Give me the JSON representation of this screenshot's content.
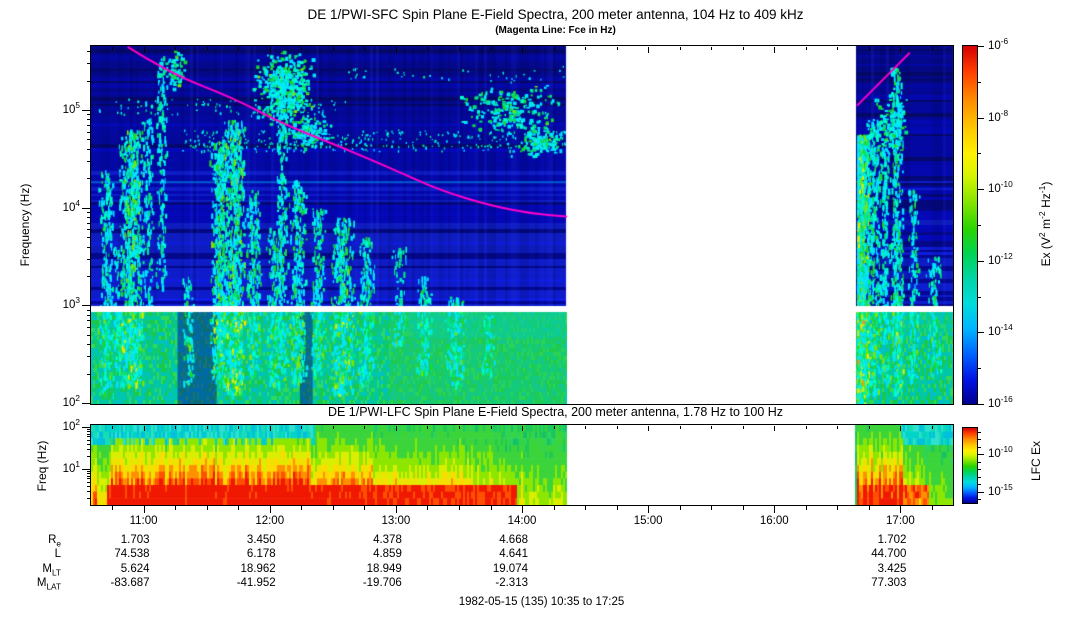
{
  "footer": {
    "caption": "1982-05-15 (135) 10:35 to 17:25"
  },
  "ephemeris": {
    "row_labels_rich": [
      [
        {
          "t": "R"
        },
        {
          "t": "e",
          "sub": true
        }
      ],
      [
        {
          "t": "L"
        }
      ],
      [
        {
          "t": "M"
        },
        {
          "t": "LT",
          "sub": true
        }
      ],
      [
        {
          "t": "M"
        },
        {
          "t": "LAT",
          "sub": true
        }
      ]
    ],
    "columns": [
      {
        "time": "11:00",
        "values": [
          "1.703",
          "74.538",
          "5.624",
          "-83.687"
        ]
      },
      {
        "time": "12:00",
        "values": [
          "3.450",
          "6.178",
          "18.962",
          "-41.952"
        ]
      },
      {
        "time": "13:00",
        "values": [
          "4.378",
          "4.859",
          "18.949",
          "-19.706"
        ]
      },
      {
        "time": "14:00",
        "values": [
          "4.668",
          "4.641",
          "19.074",
          "-2.313"
        ]
      },
      {
        "time": "15:00",
        "values": [
          "",
          "",
          "",
          ""
        ]
      },
      {
        "time": "16:00",
        "values": [
          "",
          "",
          "",
          ""
        ]
      },
      {
        "time": "17:00",
        "values": [
          "1.702",
          "44.700",
          "3.425",
          "77.303"
        ]
      }
    ]
  },
  "chart_data": [
    {
      "type": "heatmap",
      "id": "sfc",
      "title": "DE 1/PWI-SFC  Spin Plane E-Field Spectra, 200 meter antenna, 104 Hz to 409 kHz",
      "subtitle": "(Magenta Line: Fce in Hz)",
      "ylabel": "Frequency (Hz)",
      "y_scale": "log",
      "y_range_hz": [
        100,
        450000
      ],
      "y_tick_exps": [
        5,
        4,
        3,
        2
      ],
      "x_range_hours": [
        10.5833,
        17.4167
      ],
      "x_minor_step_hours": 0.25,
      "x_ticks": [
        {
          "hour": 11,
          "label": "11:00"
        },
        {
          "hour": 12,
          "label": "12:00"
        },
        {
          "hour": 13,
          "label": "13:00"
        },
        {
          "hour": 14,
          "label": "14:00"
        },
        {
          "hour": 15,
          "label": "15:00"
        },
        {
          "hour": 16,
          "label": "16:00"
        },
        {
          "hour": 17,
          "label": "17:00"
        }
      ],
      "data_gap_hours": [
        14.35,
        16.65
      ],
      "band_split_white_strip_hz": [
        950,
        1050
      ],
      "colorbar": {
        "label_rich": [
          {
            "t": "Ex (V"
          },
          {
            "t": "2",
            "sup": true
          },
          {
            "t": " m"
          },
          {
            "t": "-2",
            "sup": true
          },
          {
            "t": " Hz"
          },
          {
            "t": "-1",
            "sup": true
          },
          {
            "t": ")"
          }
        ],
        "tick_exps": [
          -6,
          -8,
          -10,
          -12,
          -14,
          -16
        ],
        "range_exps": [
          -6,
          -16
        ]
      },
      "fce_line": {
        "color": "#ff00cc",
        "description": "electron cyclotron frequency Fce in Hz",
        "segments_t_hz": [
          [
            [
              10.88,
              437000
            ],
            [
              11.2,
              240000
            ],
            [
              11.73,
              129000
            ],
            [
              12.1,
              72000
            ],
            [
              12.56,
              42000
            ],
            [
              13.0,
              24000
            ],
            [
              13.35,
              15000
            ],
            [
              13.75,
              10500
            ],
            [
              14.07,
              8700
            ],
            [
              14.35,
              8100
            ]
          ],
          [
            [
              16.66,
              112000
            ],
            [
              16.82,
              180000
            ],
            [
              17.07,
              380000
            ]
          ]
        ]
      },
      "features": {
        "streaks": [
          {
            "t": 10.7,
            "w": 8,
            "e0": 2.1,
            "e1": 4.4,
            "d": 0.5,
            "hot": 0.15
          },
          {
            "t": 10.79,
            "w": 5,
            "e0": 2.2,
            "e1": 3.6,
            "d": 0.4,
            "hot": 0.1
          },
          {
            "t": 10.9,
            "w": 13,
            "e0": 2.2,
            "e1": 4.8,
            "d": 0.85,
            "hot": 0.5
          },
          {
            "t": 11.03,
            "w": 6,
            "e0": 3.0,
            "e1": 5.1,
            "d": 0.35,
            "hot": 0.1
          },
          {
            "t": 11.14,
            "w": 6,
            "e0": 3.2,
            "e1": 5.55,
            "d": 0.4,
            "hot": 0.1
          },
          {
            "t": 11.35,
            "w": 7,
            "e0": 2.2,
            "e1": 3.3,
            "d": 0.4,
            "hot": 0.15
          },
          {
            "t": 11.6,
            "w": 10,
            "e0": 2.2,
            "e1": 4.7,
            "d": 0.8,
            "hot": 0.45
          },
          {
            "t": 11.72,
            "w": 11,
            "e0": 2.1,
            "e1": 4.9,
            "d": 0.85,
            "hot": 0.55
          },
          {
            "t": 11.87,
            "w": 8,
            "e0": 2.3,
            "e1": 4.2,
            "d": 0.6,
            "hot": 0.3
          },
          {
            "t": 12.02,
            "w": 7,
            "e0": 2.2,
            "e1": 3.8,
            "d": 0.5,
            "hot": 0.25
          },
          {
            "t": 12.09,
            "w": 7,
            "e0": 2.2,
            "e1": 5.5,
            "d": 0.5,
            "hot": 0.2
          },
          {
            "t": 12.22,
            "w": 9,
            "e0": 2.2,
            "e1": 4.3,
            "d": 0.6,
            "hot": 0.3
          },
          {
            "t": 12.38,
            "w": 8,
            "e0": 2.3,
            "e1": 4.0,
            "d": 0.5,
            "hot": 0.2
          },
          {
            "t": 12.57,
            "w": 13,
            "e0": 2.1,
            "e1": 3.9,
            "d": 0.65,
            "hot": 0.4
          },
          {
            "t": 12.76,
            "w": 9,
            "e0": 2.2,
            "e1": 3.7,
            "d": 0.5,
            "hot": 0.25
          },
          {
            "t": 13.02,
            "w": 8,
            "e0": 2.6,
            "e1": 3.6,
            "d": 0.35,
            "hot": 0.1
          },
          {
            "t": 13.22,
            "w": 9,
            "e0": 2.3,
            "e1": 3.3,
            "d": 0.45,
            "hot": 0.2
          },
          {
            "t": 13.47,
            "w": 11,
            "e0": 2.2,
            "e1": 3.1,
            "d": 0.5,
            "hot": 0.3
          },
          {
            "t": 13.72,
            "w": 8,
            "e0": 2.3,
            "e1": 2.9,
            "d": 0.4,
            "hot": 0.15
          },
          {
            "t": 16.685,
            "w": 9,
            "e0": 2.0,
            "e1": 4.75,
            "d": 2.0,
            "hot": 0.7
          },
          {
            "t": 16.78,
            "w": 8,
            "e0": 2.1,
            "e1": 4.9,
            "d": 0.6,
            "hot": 0.3
          },
          {
            "t": 16.87,
            "w": 6,
            "e0": 2.2,
            "e1": 4.6,
            "d": 0.5,
            "hot": 0.2
          },
          {
            "t": 16.97,
            "w": 7,
            "e0": 2.1,
            "e1": 5.45,
            "d": 0.7,
            "hot": 0.35
          },
          {
            "t": 17.1,
            "w": 6,
            "e0": 2.2,
            "e1": 4.2,
            "d": 0.45,
            "hot": 0.2
          },
          {
            "t": 17.26,
            "w": 8,
            "e0": 2.3,
            "e1": 3.5,
            "d": 0.4,
            "hot": 0.15
          }
        ],
        "blobs": [
          {
            "t0": 11.15,
            "t1": 11.33,
            "e0": 5.2,
            "e1": 5.62,
            "d": 0.7
          },
          {
            "t0": 11.85,
            "t1": 12.35,
            "e0": 4.85,
            "e1": 5.62,
            "d": 0.8
          },
          {
            "t0": 12.08,
            "t1": 12.52,
            "e0": 4.6,
            "e1": 4.97,
            "d": 0.55
          },
          {
            "t0": 13.5,
            "t1": 14.32,
            "e0": 4.75,
            "e1": 5.3,
            "d": 0.35
          },
          {
            "t0": 13.9,
            "t1": 14.34,
            "e0": 4.5,
            "e1": 4.85,
            "d": 0.6
          },
          {
            "t0": 16.75,
            "t1": 17.05,
            "e0": 4.5,
            "e1": 5.2,
            "d": 0.4
          }
        ],
        "speckle_bands": [
          {
            "t0": 11.3,
            "t1": 14.35,
            "e0": 4.58,
            "e1": 4.8,
            "d": 0.2
          },
          {
            "t0": 10.62,
            "t1": 12.6,
            "e0": 4.95,
            "e1": 5.12,
            "d": 0.1
          },
          {
            "t0": 12.6,
            "t1": 14.35,
            "e0": 5.3,
            "e1": 5.45,
            "d": 0.06
          }
        ],
        "dark_columns": [
          {
            "t0": 11.27,
            "t1": 11.58
          },
          {
            "t0": 12.24,
            "t1": 12.34
          }
        ],
        "hline": {
          "e": 4.27,
          "t0": 10.5833,
          "t1": 14.35,
          "color": "rgba(0,190,255,0.45)"
        }
      }
    },
    {
      "type": "heatmap",
      "id": "lfc",
      "title": "DE 1/PWI-LFC  Spin Plane E-Field Spectra, 200 meter antenna, 1.78 Hz to 100 Hz",
      "ylabel": "Freq (Hz)",
      "y_scale": "log",
      "y_range_hz": [
        1.78,
        100
      ],
      "y_tick_exps": [
        2,
        1
      ],
      "x_range_hours": [
        10.5833,
        17.4167
      ],
      "data_gap_hours": [
        14.35,
        16.64
      ],
      "colorbar": {
        "label": "LFC Ex",
        "tick_exps": [
          -10,
          -15
        ],
        "range_exps": [
          -6.5,
          -16.5
        ]
      },
      "features": {
        "heat_profile": [
          {
            "t0": 10.5833,
            "t1": 10.63,
            "v": 0.8
          },
          {
            "t0": 10.63,
            "t1": 10.74,
            "v": 0.45
          },
          {
            "t0": 10.74,
            "t1": 11.2,
            "v": 0.95
          },
          {
            "t0": 11.2,
            "t1": 12.3,
            "v": 1.0
          },
          {
            "t0": 12.3,
            "t1": 12.85,
            "v": 0.8
          },
          {
            "t0": 12.85,
            "t1": 13.6,
            "v": 0.6
          },
          {
            "t0": 13.6,
            "t1": 14.0,
            "v": 0.45
          },
          {
            "t0": 14.0,
            "t1": 14.35,
            "v": 0.35
          },
          {
            "t0": 16.64,
            "t1": 17.02,
            "v": 0.9
          },
          {
            "t0": 17.02,
            "t1": 17.18,
            "v": 0.5
          },
          {
            "t0": 17.18,
            "t1": 17.4167,
            "v": 0.28
          }
        ],
        "cyan_top_zones": [
          {
            "t0": 10.5833,
            "t1": 12.35
          },
          {
            "t0": 17.0,
            "t1": 17.4167
          }
        ]
      }
    }
  ]
}
